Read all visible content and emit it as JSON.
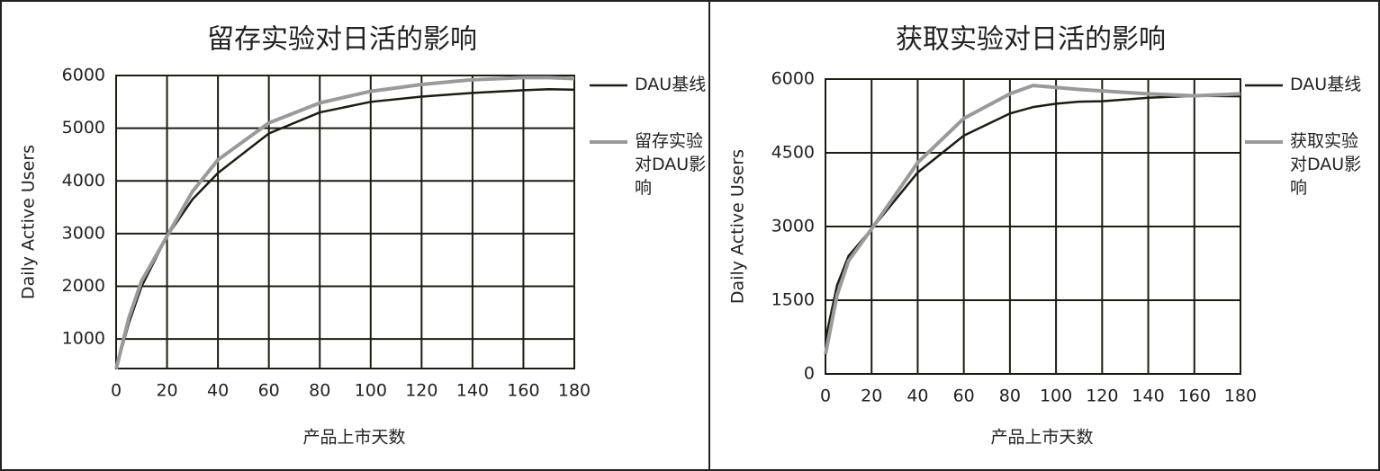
{
  "chart_data": [
    {
      "type": "line",
      "title": "留存实验对日活的影响",
      "x_label": "产品上市天数",
      "y_label": "Daily Active Users",
      "x": [
        0,
        5,
        10,
        20,
        30,
        40,
        60,
        80,
        100,
        120,
        140,
        160,
        170,
        180
      ],
      "series": [
        {
          "name": "DAU基线",
          "color": "#1c1c12",
          "values": [
            430,
            1300,
            2000,
            2950,
            3650,
            4150,
            4900,
            5300,
            5500,
            5600,
            5670,
            5720,
            5740,
            5730
          ]
        },
        {
          "name": "留存实验对DAU影响",
          "color": "#9a9a9a",
          "values": [
            430,
            1400,
            2100,
            2950,
            3800,
            4400,
            5100,
            5480,
            5700,
            5830,
            5920,
            5960,
            5960,
            5940
          ]
        }
      ],
      "xlim": [
        0,
        180
      ],
      "xticks": [
        0,
        20,
        40,
        60,
        80,
        100,
        120,
        140,
        160,
        180
      ],
      "ylim": [
        440,
        6000
      ],
      "yticks": [
        1000,
        2000,
        3000,
        4000,
        5000,
        6000
      ],
      "grid": true,
      "legend": "right"
    },
    {
      "type": "line",
      "title": "获取实验对日活的影响",
      "x_label": "产品上市天数",
      "y_label": "Daily Active Users",
      "x": [
        0,
        5,
        10,
        20,
        40,
        60,
        80,
        90,
        100,
        110,
        120,
        140,
        160,
        180
      ],
      "series": [
        {
          "name": "DAU基线",
          "color": "#1c1c12",
          "values": [
            700,
            1800,
            2400,
            2950,
            4100,
            4850,
            5300,
            5430,
            5500,
            5540,
            5550,
            5620,
            5660,
            5650
          ]
        },
        {
          "name": "获取实验对DAU影响",
          "color": "#9a9a9a",
          "values": [
            400,
            1600,
            2300,
            2950,
            4300,
            5200,
            5700,
            5870,
            5830,
            5790,
            5760,
            5700,
            5660,
            5700
          ]
        }
      ],
      "xlim": [
        0,
        180
      ],
      "xticks": [
        0,
        20,
        40,
        60,
        80,
        100,
        120,
        140,
        160,
        180
      ],
      "ylim": [
        0,
        6000
      ],
      "yticks": [
        0,
        1500,
        3000,
        4500,
        6000
      ],
      "grid": true,
      "legend": "right"
    }
  ]
}
